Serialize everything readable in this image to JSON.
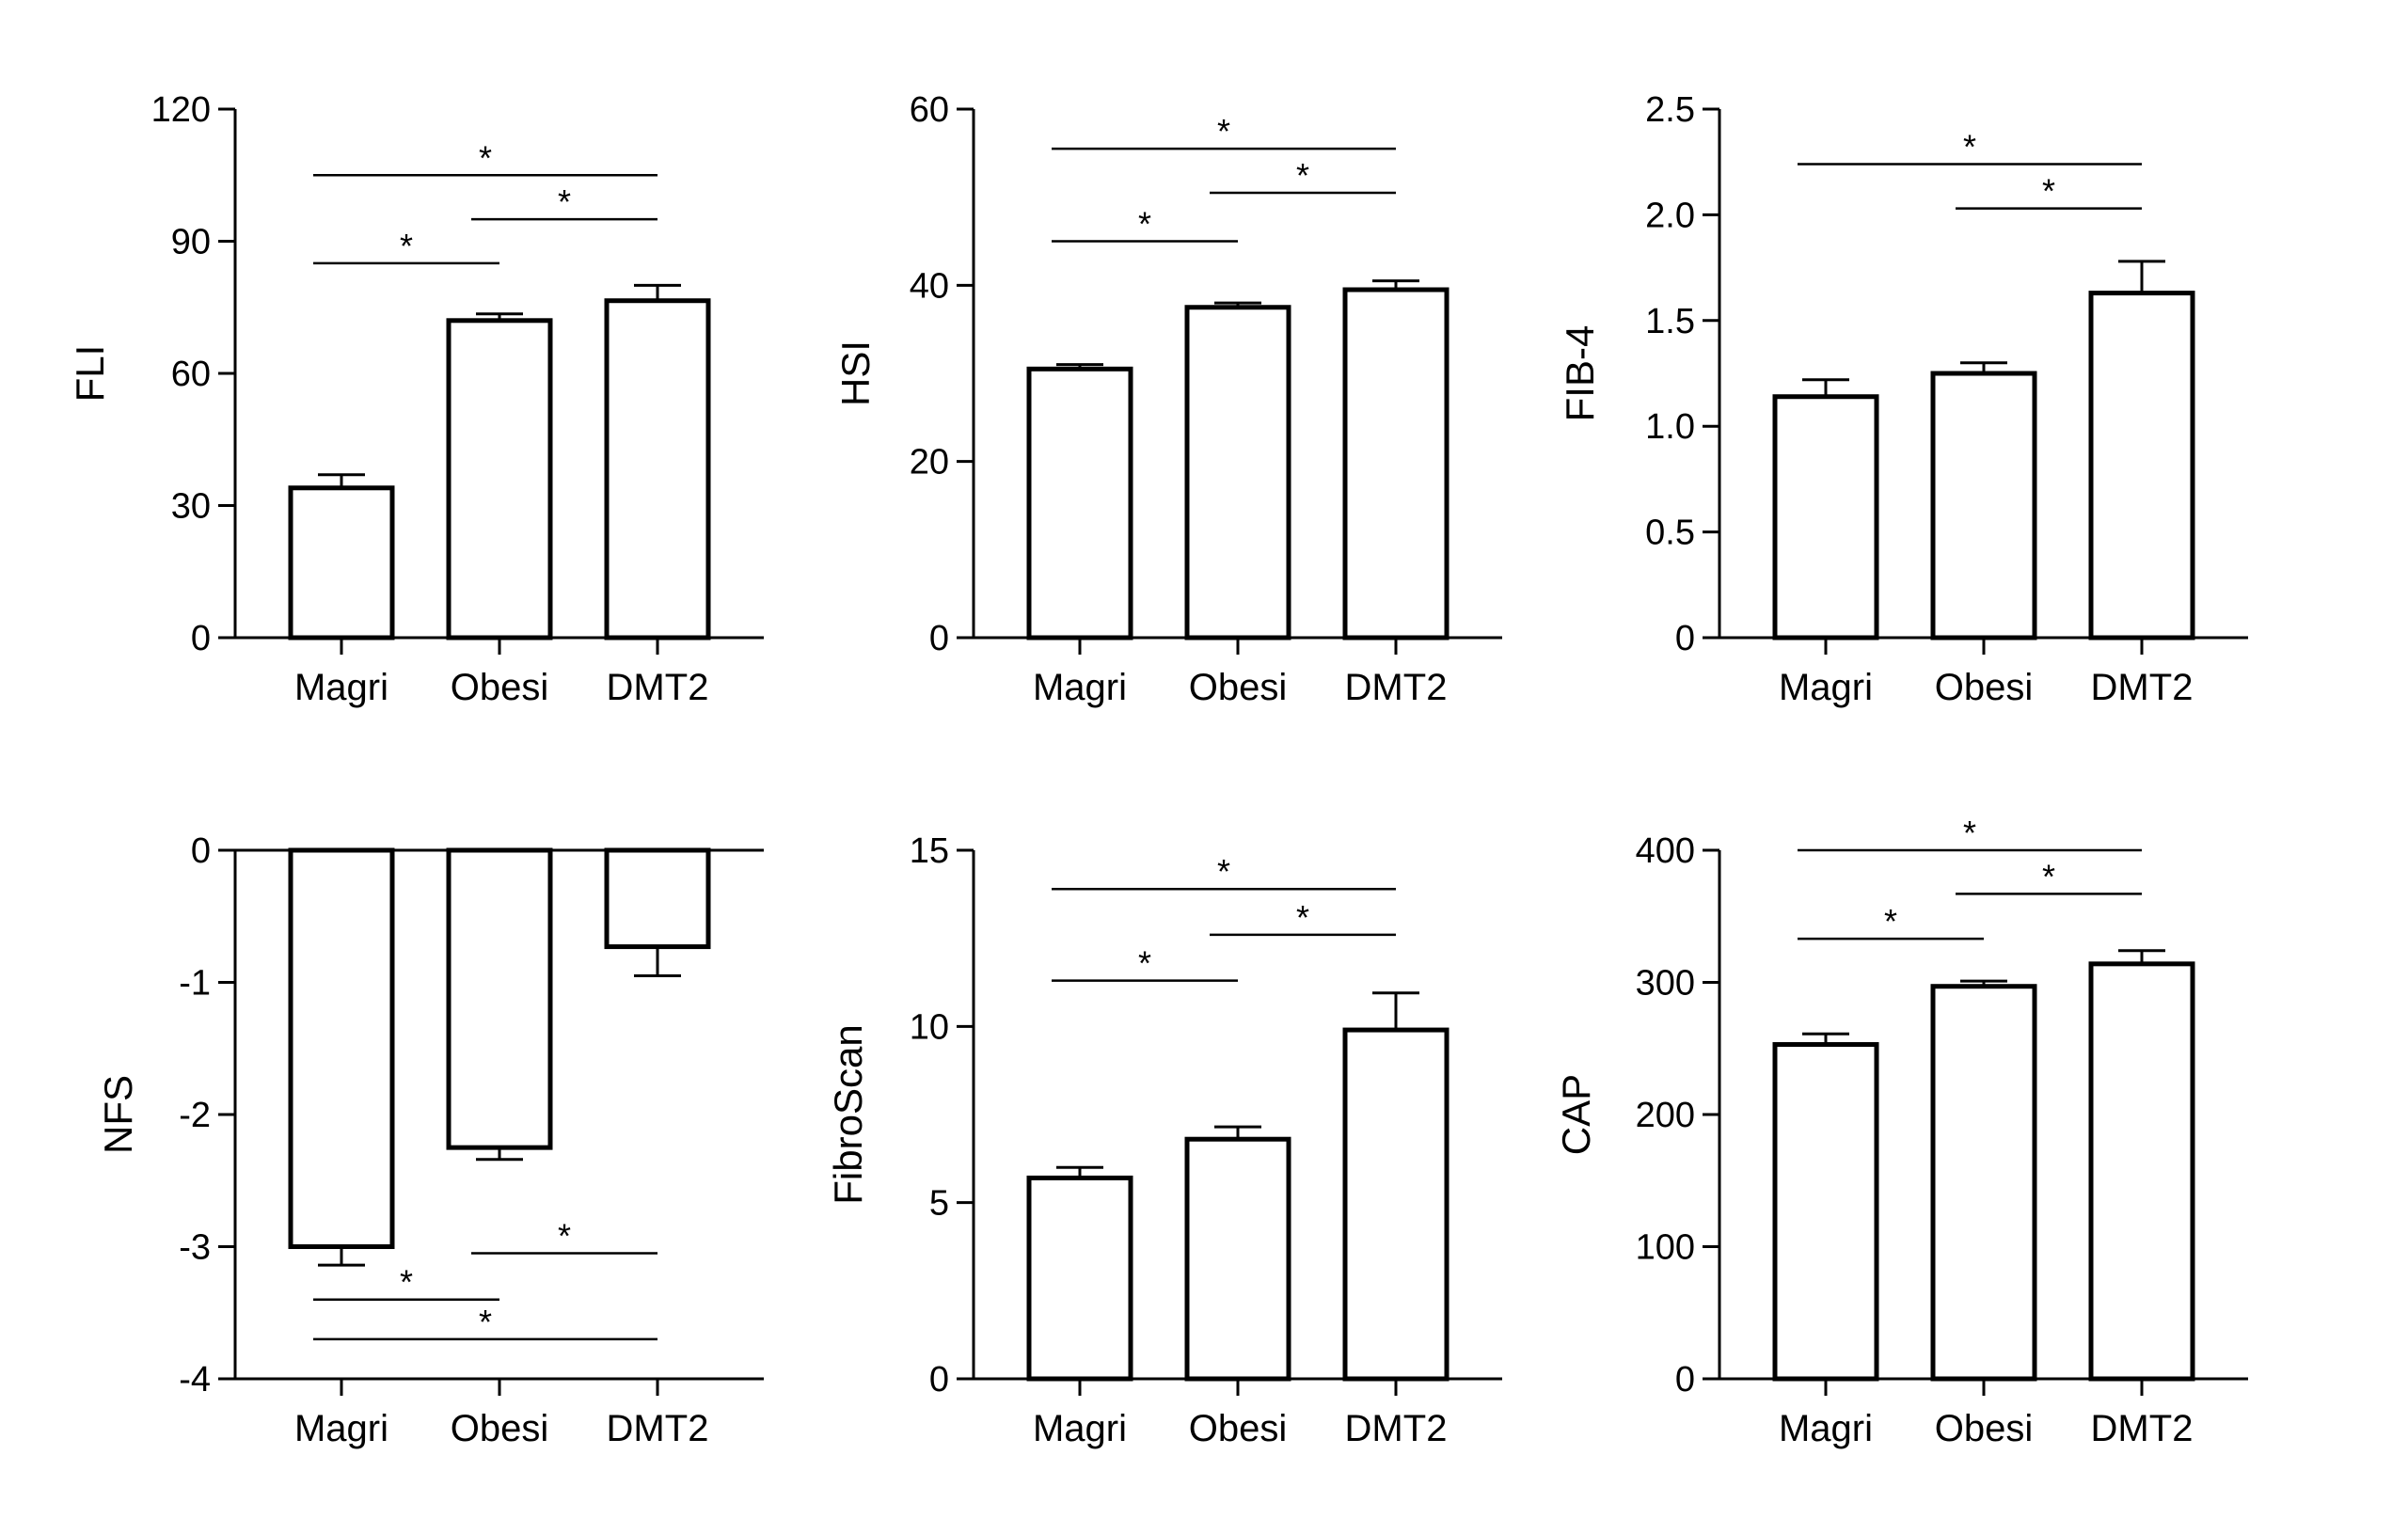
{
  "chart_data": [
    {
      "type": "bar",
      "ylabel": "FLI",
      "categories": [
        "Magri",
        "Obesi",
        "DMT2"
      ],
      "values": [
        34,
        72,
        76.5
      ],
      "errors": [
        3,
        1.5,
        3.5
      ],
      "ylim": [
        0,
        120
      ],
      "yticks": [
        0,
        30,
        60,
        90,
        120
      ],
      "ytick_labels": [
        "0",
        "30",
        "60",
        "90",
        "120"
      ],
      "significance": [
        {
          "from": 0,
          "to": 1,
          "y": 85,
          "label": "*"
        },
        {
          "from": 1,
          "to": 2,
          "y": 95,
          "label": "*"
        },
        {
          "from": 0,
          "to": 2,
          "y": 105,
          "label": "*"
        }
      ]
    },
    {
      "type": "bar",
      "ylabel": "HSI",
      "categories": [
        "Magri",
        "Obesi",
        "DMT2"
      ],
      "values": [
        30.5,
        37.5,
        39.5
      ],
      "errors": [
        0.5,
        0.5,
        1
      ],
      "ylim": [
        0,
        60
      ],
      "yticks": [
        0,
        20,
        40,
        60
      ],
      "ytick_labels": [
        "0",
        "20",
        "40",
        "60"
      ],
      "significance": [
        {
          "from": 0,
          "to": 1,
          "y": 45,
          "label": "*"
        },
        {
          "from": 1,
          "to": 2,
          "y": 50.5,
          "label": "*"
        },
        {
          "from": 0,
          "to": 2,
          "y": 55.5,
          "label": "*"
        }
      ]
    },
    {
      "type": "bar",
      "ylabel": "FIB-4",
      "categories": [
        "Magri",
        "Obesi",
        "DMT2"
      ],
      "values": [
        1.14,
        1.25,
        1.63
      ],
      "errors": [
        0.08,
        0.05,
        0.15
      ],
      "ylim": [
        0,
        2.5
      ],
      "yticks": [
        0,
        0.5,
        1.0,
        1.5,
        2.0,
        2.5
      ],
      "ytick_labels": [
        "0",
        "0.5",
        "1.0",
        "1.5",
        "2.0",
        "2.5"
      ],
      "significance": [
        {
          "from": 1,
          "to": 2,
          "y": 2.03,
          "label": "*"
        },
        {
          "from": 0,
          "to": 2,
          "y": 2.24,
          "label": "*"
        }
      ]
    },
    {
      "type": "bar",
      "ylabel": "NFS",
      "categories": [
        "Magri",
        "Obesi",
        "DMT2"
      ],
      "values": [
        -3.0,
        -2.25,
        -0.73
      ],
      "errors": [
        0.14,
        0.09,
        0.22
      ],
      "ylim": [
        -4,
        0
      ],
      "yticks": [
        -4,
        -3,
        -2,
        -1,
        0
      ],
      "ytick_labels": [
        "-4",
        "-3",
        "-2",
        "-1",
        "0"
      ],
      "significance": [
        {
          "from": 1,
          "to": 2,
          "y": -3.05,
          "label": "*"
        },
        {
          "from": 0,
          "to": 1,
          "y": -3.4,
          "label": "*"
        },
        {
          "from": 0,
          "to": 2,
          "y": -3.7,
          "label": "*"
        }
      ]
    },
    {
      "type": "bar",
      "ylabel": "FibroScan",
      "categories": [
        "Magri",
        "Obesi",
        "DMT2"
      ],
      "values": [
        5.7,
        6.8,
        9.9
      ],
      "errors": [
        0.3,
        0.35,
        1.05
      ],
      "ylim": [
        0,
        15
      ],
      "yticks": [
        0,
        5,
        10,
        15
      ],
      "ytick_labels": [
        "0",
        "5",
        "10",
        "15"
      ],
      "significance": [
        {
          "from": 0,
          "to": 1,
          "y": 11.3,
          "label": "*"
        },
        {
          "from": 1,
          "to": 2,
          "y": 12.6,
          "label": "*"
        },
        {
          "from": 0,
          "to": 2,
          "y": 13.9,
          "label": "*"
        }
      ]
    },
    {
      "type": "bar",
      "ylabel": "CAP",
      "categories": [
        "Magri",
        "Obesi",
        "DMT2"
      ],
      "values": [
        253,
        297,
        314
      ],
      "errors": [
        8,
        4,
        10
      ],
      "ylim": [
        0,
        400
      ],
      "yticks": [
        0,
        100,
        200,
        300,
        400
      ],
      "ytick_labels": [
        "0",
        "100",
        "200",
        "300",
        "400"
      ],
      "significance": [
        {
          "from": 0,
          "to": 1,
          "y": 333,
          "label": "*"
        },
        {
          "from": 1,
          "to": 2,
          "y": 367,
          "label": "*"
        },
        {
          "from": 0,
          "to": 2,
          "y": 400,
          "label": "*"
        }
      ]
    }
  ]
}
